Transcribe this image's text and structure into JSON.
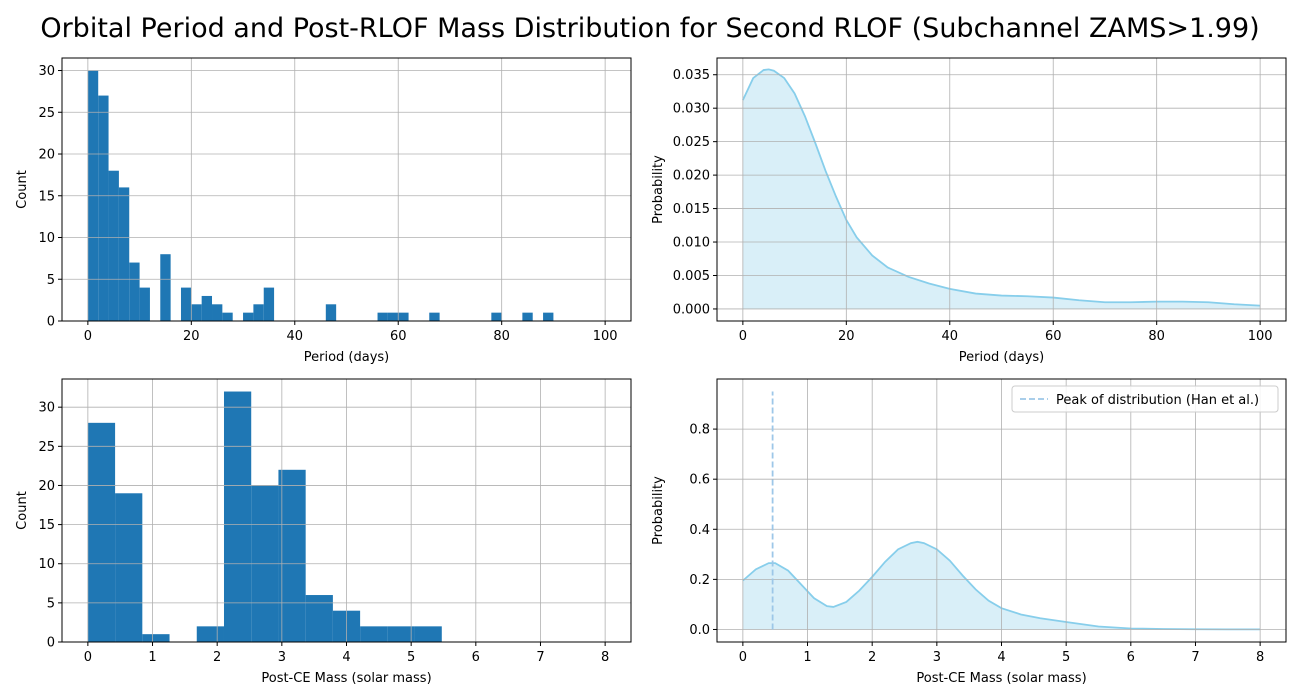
{
  "figure": {
    "title": "Orbital Period and Post-RLOF Mass Distribution for Second RLOF (Subchannel ZAMS>1.99)"
  },
  "colors": {
    "histogram": "#1f77b4",
    "kde_line": "#87ceeb",
    "kde_fill": "#d9eff8",
    "peak_line": "#9dc7e8",
    "grid": "#b0b0b0"
  },
  "chart_data": [
    {
      "type": "bar",
      "subtype": "histogram",
      "xlabel": "Period (days)",
      "ylabel": "Count",
      "xlim": [
        -5,
        105
      ],
      "ylim": [
        0,
        31.5
      ],
      "xticks": [
        0,
        20,
        40,
        60,
        80,
        100
      ],
      "yticks": [
        0,
        5,
        10,
        15,
        20,
        25,
        30
      ],
      "grid": true,
      "bin_width": 2,
      "bins": [
        {
          "x0": 0,
          "count": 30
        },
        {
          "x0": 2,
          "count": 27
        },
        {
          "x0": 4,
          "count": 18
        },
        {
          "x0": 6,
          "count": 16
        },
        {
          "x0": 8,
          "count": 7
        },
        {
          "x0": 10,
          "count": 4
        },
        {
          "x0": 14,
          "count": 8
        },
        {
          "x0": 18,
          "count": 4
        },
        {
          "x0": 20,
          "count": 2
        },
        {
          "x0": 22,
          "count": 3
        },
        {
          "x0": 24,
          "count": 2
        },
        {
          "x0": 26,
          "count": 1
        },
        {
          "x0": 30,
          "count": 1
        },
        {
          "x0": 32,
          "count": 2
        },
        {
          "x0": 34,
          "count": 4
        },
        {
          "x0": 46,
          "count": 2
        },
        {
          "x0": 56,
          "count": 1
        },
        {
          "x0": 58,
          "count": 1
        },
        {
          "x0": 60,
          "count": 1
        },
        {
          "x0": 66,
          "count": 1
        },
        {
          "x0": 78,
          "count": 1
        },
        {
          "x0": 84,
          "count": 1
        },
        {
          "x0": 88,
          "count": 1
        }
      ]
    },
    {
      "type": "area",
      "subtype": "kde",
      "xlabel": "Period (days)",
      "ylabel": "Probability",
      "xlim": [
        -5,
        105
      ],
      "ylim": [
        -0.0018,
        0.0375
      ],
      "xticks": [
        0,
        20,
        40,
        60,
        80,
        100
      ],
      "yticks": [
        0.0,
        0.005,
        0.01,
        0.015,
        0.02,
        0.025,
        0.03,
        0.035
      ],
      "ytick_labels": [
        "0.000",
        "0.005",
        "0.010",
        "0.015",
        "0.020",
        "0.025",
        "0.030",
        "0.035"
      ],
      "grid": true,
      "x": [
        0,
        2,
        4,
        5,
        6,
        8,
        10,
        12,
        14,
        16,
        18,
        20,
        22,
        25,
        28,
        32,
        36,
        40,
        45,
        50,
        55,
        60,
        65,
        70,
        75,
        80,
        85,
        90,
        95,
        100
      ],
      "y": [
        0.0312,
        0.0345,
        0.0357,
        0.0358,
        0.0356,
        0.0345,
        0.0322,
        0.0288,
        0.0248,
        0.0206,
        0.0168,
        0.0133,
        0.0107,
        0.008,
        0.0062,
        0.0048,
        0.0038,
        0.003,
        0.0023,
        0.002,
        0.0019,
        0.0017,
        0.0013,
        0.001,
        0.001,
        0.0011,
        0.0011,
        0.001,
        0.0007,
        0.0005
      ]
    },
    {
      "type": "bar",
      "subtype": "histogram",
      "xlabel": "Post-CE Mass (solar mass)",
      "ylabel": "Count",
      "xlim": [
        -0.4,
        8.4
      ],
      "ylim": [
        0,
        33.6
      ],
      "xticks": [
        0,
        1,
        2,
        3,
        4,
        5,
        6,
        7,
        8
      ],
      "yticks": [
        0,
        5,
        10,
        15,
        20,
        25,
        30
      ],
      "grid": true,
      "bin_width": 0.4211,
      "bins": [
        {
          "x0": 0.0,
          "count": 28
        },
        {
          "x0": 0.4211,
          "count": 19
        },
        {
          "x0": 0.8421,
          "count": 1
        },
        {
          "x0": 1.6842,
          "count": 2
        },
        {
          "x0": 2.1053,
          "count": 32
        },
        {
          "x0": 2.5263,
          "count": 20
        },
        {
          "x0": 2.9474,
          "count": 22
        },
        {
          "x0": 3.3684,
          "count": 6
        },
        {
          "x0": 3.7895,
          "count": 4
        },
        {
          "x0": 4.2105,
          "count": 2
        },
        {
          "x0": 4.6316,
          "count": 2
        },
        {
          "x0": 5.0526,
          "count": 2
        }
      ]
    },
    {
      "type": "area",
      "subtype": "kde",
      "xlabel": "Post-CE Mass (solar mass)",
      "ylabel": "Probability",
      "xlim": [
        -0.4,
        8.4
      ],
      "ylim": [
        -0.05,
        1.0
      ],
      "xticks": [
        0,
        1,
        2,
        3,
        4,
        5,
        6,
        7,
        8
      ],
      "yticks": [
        0.0,
        0.2,
        0.4,
        0.6,
        0.8
      ],
      "ytick_labels": [
        "0.0",
        "0.2",
        "0.4",
        "0.6",
        "0.8"
      ],
      "grid": true,
      "x": [
        0,
        0.2,
        0.4,
        0.5,
        0.7,
        0.9,
        1.1,
        1.3,
        1.4,
        1.6,
        1.8,
        2.0,
        2.2,
        2.4,
        2.6,
        2.7,
        2.8,
        3.0,
        3.2,
        3.4,
        3.6,
        3.8,
        4.0,
        4.3,
        4.6,
        5.0,
        5.5,
        6.0,
        6.5,
        7.0,
        7.5,
        8.0
      ],
      "y": [
        0.195,
        0.24,
        0.265,
        0.265,
        0.235,
        0.18,
        0.125,
        0.093,
        0.09,
        0.11,
        0.155,
        0.21,
        0.27,
        0.32,
        0.345,
        0.35,
        0.345,
        0.32,
        0.275,
        0.215,
        0.16,
        0.115,
        0.085,
        0.06,
        0.045,
        0.03,
        0.012,
        0.004,
        0.002,
        0.001,
        0.0005,
        0.0003
      ],
      "vline": {
        "x": 0.46,
        "ymax": 0.95,
        "label": "Peak of distribution (Han et al.)"
      },
      "legend_position": "top-right"
    }
  ]
}
